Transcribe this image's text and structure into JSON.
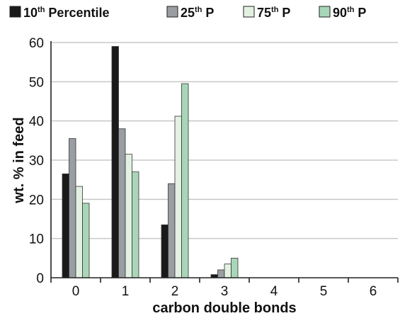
{
  "chart_data": {
    "type": "bar",
    "title": "",
    "xlabel": "carbon double bonds",
    "ylabel": "wt. % in feed",
    "categories": [
      "0",
      "1",
      "2",
      "3",
      "4",
      "5",
      "6"
    ],
    "ylim": [
      0,
      60
    ],
    "yticks": [
      "0",
      "10",
      "20",
      "30",
      "40",
      "50",
      "60"
    ],
    "grid": true,
    "legend_position": "top",
    "series": [
      {
        "name": "10th Percentile",
        "legend_base": "10",
        "legend_sup": "th",
        "legend_rest": " Percentile",
        "color": "#1a1a1a",
        "values": [
          26.5,
          59,
          13.5,
          0.8,
          0,
          0,
          0
        ]
      },
      {
        "name": "25th P",
        "legend_base": "25",
        "legend_sup": "th",
        "legend_rest": " P",
        "color": "#9a9ea3",
        "values": [
          35.5,
          38,
          24,
          2,
          0,
          0,
          0
        ]
      },
      {
        "name": "75th P",
        "legend_base": "75",
        "legend_sup": "th",
        "legend_rest": " P",
        "color": "#e3f1e2",
        "values": [
          23.3,
          31.5,
          41.2,
          3.5,
          0,
          0,
          0
        ]
      },
      {
        "name": "90th P",
        "legend_base": "90",
        "legend_sup": "th",
        "legend_rest": " P",
        "color": "#a9d6b8",
        "values": [
          19,
          27,
          49.5,
          5,
          0,
          0,
          0
        ]
      }
    ]
  }
}
